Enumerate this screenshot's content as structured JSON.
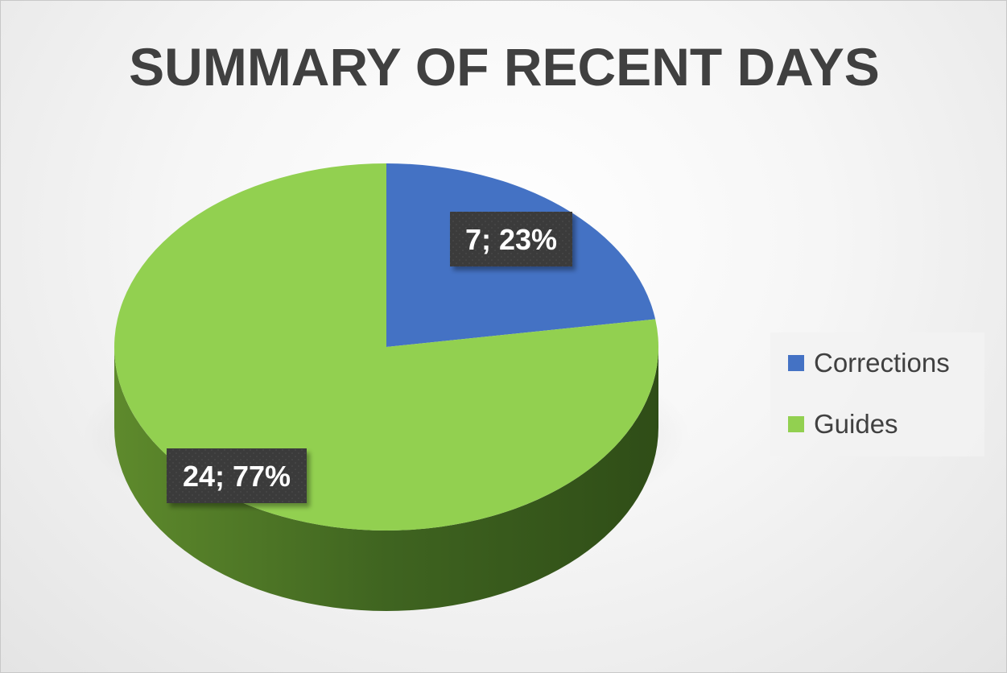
{
  "chart_data": {
    "type": "pie",
    "title": "SUMMARY OF RECENT DAYS",
    "categories": [
      "Corrections",
      "Guides"
    ],
    "values": [
      7,
      24
    ],
    "percentages": [
      23,
      77
    ],
    "data_labels": [
      "7; 23%",
      "24; 77%"
    ],
    "colors": [
      "#4472C4",
      "#92D050"
    ],
    "legend_position": "right",
    "style": "3d-pie"
  }
}
